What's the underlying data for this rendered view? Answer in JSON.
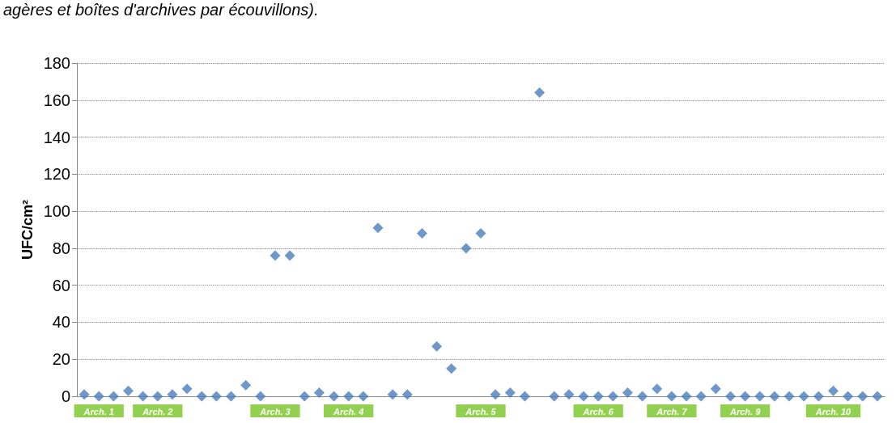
{
  "chart_data": {
    "type": "scatter",
    "ylabel": "UFC/cm²",
    "annotations": [
      "agères et boîtes d'archives par écouvillons)."
    ],
    "categories": [
      null,
      "Arch. 1",
      null,
      null,
      null,
      "Arch. 2",
      null,
      null,
      null,
      null,
      null,
      null,
      null,
      "Arch. 3",
      null,
      null,
      null,
      null,
      "Arch. 4",
      null,
      null,
      null,
      null,
      null,
      null,
      null,
      null,
      "Arch. 5",
      null,
      null,
      null,
      null,
      null,
      null,
      null,
      "Arch. 6",
      null,
      null,
      null,
      null,
      "Arch. 7",
      null,
      null,
      null,
      null,
      "Arch. 9",
      null,
      null,
      null,
      null,
      null,
      "Arch. 10",
      null,
      null,
      null
    ],
    "series": [
      {
        "color": "#4a7ebb",
        "values": [
          1,
          0,
          0,
          3,
          0,
          0,
          1,
          4,
          0,
          0,
          0,
          6,
          0,
          76,
          76,
          0,
          2,
          0,
          0,
          0,
          91,
          1,
          1,
          88,
          27,
          15,
          80,
          88,
          1,
          2,
          0,
          164,
          0,
          1,
          0,
          0,
          0,
          2,
          0,
          4,
          0,
          0,
          0,
          4,
          0,
          0,
          0,
          0,
          0,
          0,
          0,
          3,
          0,
          0,
          0
        ]
      }
    ],
    "ylim": [
      0,
      180
    ],
    "yticks": [
      0,
      20,
      40,
      60,
      80,
      100,
      120,
      140,
      160,
      180
    ],
    "grid": "y",
    "marker": "diamond"
  }
}
